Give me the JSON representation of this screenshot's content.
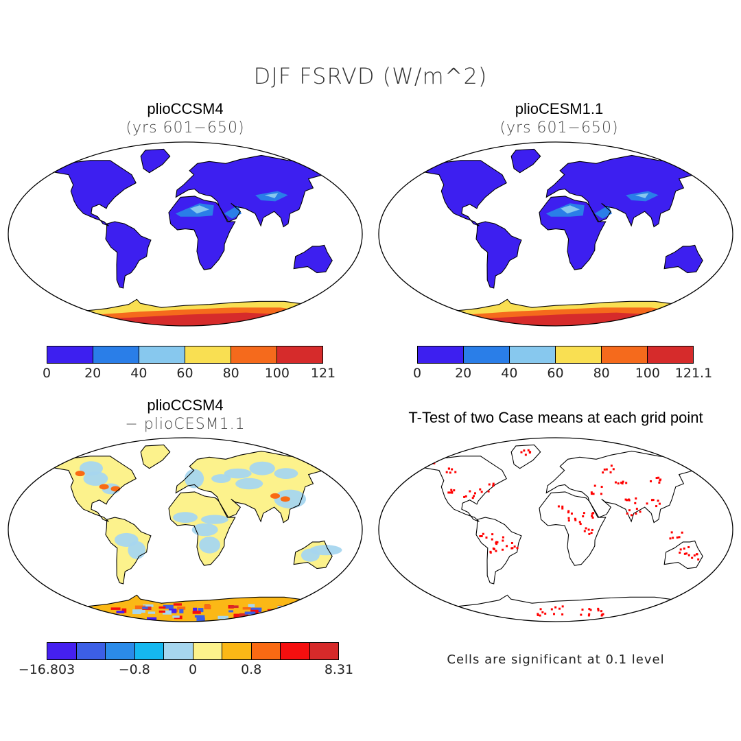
{
  "title": "DJF FSRVD (W/m^2)",
  "panels": {
    "top_left": {
      "title": "plioCCSM4",
      "subtitle": "(yrs 601−650)",
      "colorbar": {
        "colors": [
          "#3d1ff0",
          "#2a7ee8",
          "#87c8ee",
          "#f9df52",
          "#f56a1c",
          "#d62b2b"
        ],
        "ticks": [
          "0",
          "20",
          "40",
          "60",
          "80",
          "100",
          "121"
        ]
      }
    },
    "top_right": {
      "title": "plioCESM1.1",
      "subtitle": "(yrs 601−650)",
      "colorbar": {
        "colors": [
          "#3d1ff0",
          "#2a7ee8",
          "#87c8ee",
          "#f9df52",
          "#f56a1c",
          "#d62b2b"
        ],
        "ticks": [
          "0",
          "20",
          "40",
          "60",
          "80",
          "100",
          "121.1"
        ]
      }
    },
    "bottom_left": {
      "title": "plioCCSM4",
      "subtitle": "− plioCESM1.1",
      "colorbar": {
        "colors": [
          "#4520f0",
          "#3c5fe6",
          "#2b8be9",
          "#15b8f0",
          "#a6d6ef",
          "#fcf28c",
          "#fbb816",
          "#f96a13",
          "#f50f0f",
          "#d62a2a"
        ],
        "ticks": [
          {
            "label": "−16.803",
            "index": 0
          },
          {
            "label": "−0.8",
            "index": 3
          },
          {
            "label": "0",
            "index": 5
          },
          {
            "label": "0.8",
            "index": 7
          },
          {
            "label": "8.31",
            "index": 10
          }
        ]
      }
    },
    "bottom_right": {
      "title": "T-Test of two Case means at each grid point",
      "note": "Cells are significant at 0.1 level"
    }
  },
  "colors": {
    "land_mean": "#3d1ff0",
    "desert_mean": "#2a7ee8",
    "ice_high": "#d62b2b",
    "ice_mid": "#f56a1c",
    "ice_low": "#f9df52",
    "diff_neg": "#a6d6ef",
    "diff_pos": "#fcf28c",
    "signif": "#ff0000"
  }
}
